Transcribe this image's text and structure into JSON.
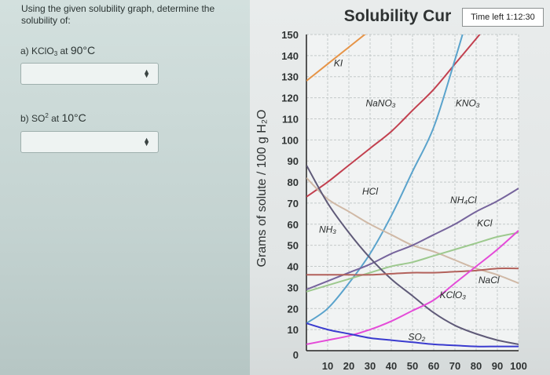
{
  "question": {
    "prompt": "Using the given solubility graph, determine the solubility of:",
    "a": {
      "prefix": "a) KClO",
      "sub": "3",
      "middle": " at ",
      "value": "90°C"
    },
    "b": {
      "prefix": "b) SO",
      "sup": "2",
      "middle": " at ",
      "value": "10°C"
    },
    "selects": [
      {
        "value": ""
      },
      {
        "value": ""
      }
    ]
  },
  "timer": {
    "text": "Time left 1:12:30"
  },
  "chart_data": {
    "type": "line",
    "title": "Solubility Cur",
    "ylabel": "Grams of solute / 100 g H₂O",
    "xlabel": "",
    "xlim": [
      0,
      100
    ],
    "ylim": [
      0,
      150
    ],
    "grid": true,
    "x_ticks": [
      "10",
      "20",
      "30",
      "40",
      "50",
      "60",
      "70",
      "80",
      "90",
      "100"
    ],
    "y_ticks": [
      "0",
      "10",
      "20",
      "30",
      "40",
      "50",
      "60",
      "70",
      "80",
      "90",
      "100",
      "110",
      "120",
      "130",
      "140",
      "150"
    ],
    "series": [
      {
        "name": "KI",
        "color": "#e69447",
        "points": [
          [
            0,
            128
          ],
          [
            20,
            144
          ],
          [
            30,
            152
          ]
        ]
      },
      {
        "name": "NaNO₃",
        "color": "#c2404f",
        "points": [
          [
            0,
            73
          ],
          [
            10,
            80
          ],
          [
            20,
            88
          ],
          [
            30,
            96
          ],
          [
            40,
            104
          ],
          [
            50,
            114
          ],
          [
            60,
            124
          ],
          [
            70,
            136
          ],
          [
            80,
            148
          ],
          [
            84,
            153
          ]
        ]
      },
      {
        "name": "KNO₃",
        "color": "#5aa3cc",
        "points": [
          [
            0,
            13
          ],
          [
            10,
            20
          ],
          [
            20,
            32
          ],
          [
            30,
            46
          ],
          [
            40,
            64
          ],
          [
            50,
            85
          ],
          [
            60,
            106
          ],
          [
            70,
            138
          ],
          [
            75,
            155
          ]
        ]
      },
      {
        "name": "HCl",
        "color": "#d0b9a6",
        "points": [
          [
            0,
            82
          ],
          [
            10,
            72
          ],
          [
            20,
            66
          ],
          [
            30,
            60
          ],
          [
            40,
            55
          ],
          [
            50,
            50
          ],
          [
            60,
            47
          ],
          [
            70,
            43
          ],
          [
            80,
            39
          ],
          [
            90,
            36
          ],
          [
            100,
            32
          ]
        ]
      },
      {
        "name": "NH₄Cl",
        "color": "#76649c",
        "points": [
          [
            0,
            29
          ],
          [
            10,
            33
          ],
          [
            20,
            37
          ],
          [
            30,
            41
          ],
          [
            40,
            46
          ],
          [
            50,
            50
          ],
          [
            60,
            55
          ],
          [
            70,
            60
          ],
          [
            80,
            66
          ],
          [
            90,
            71
          ],
          [
            100,
            77
          ]
        ]
      },
      {
        "name": "KCl",
        "color": "#9dc98e",
        "points": [
          [
            0,
            28
          ],
          [
            10,
            31
          ],
          [
            20,
            34
          ],
          [
            30,
            37
          ],
          [
            40,
            40
          ],
          [
            50,
            42
          ],
          [
            60,
            45
          ],
          [
            70,
            48
          ],
          [
            80,
            51
          ],
          [
            90,
            54
          ],
          [
            100,
            56
          ]
        ]
      },
      {
        "name": "NH₃",
        "color": "#5f5a78",
        "points": [
          [
            0,
            88
          ],
          [
            10,
            70
          ],
          [
            20,
            56
          ],
          [
            30,
            44
          ],
          [
            40,
            34
          ],
          [
            50,
            26
          ],
          [
            60,
            18
          ],
          [
            70,
            12
          ],
          [
            80,
            8
          ],
          [
            90,
            5
          ],
          [
            100,
            3
          ]
        ]
      },
      {
        "name": "NaCl",
        "color": "#b2615b",
        "points": [
          [
            0,
            36
          ],
          [
            10,
            36
          ],
          [
            20,
            36
          ],
          [
            30,
            36
          ],
          [
            40,
            36.5
          ],
          [
            50,
            37
          ],
          [
            60,
            37
          ],
          [
            70,
            37.5
          ],
          [
            80,
            38
          ],
          [
            90,
            39
          ],
          [
            100,
            39
          ]
        ]
      },
      {
        "name": "KClO₃",
        "color": "#e44bd8",
        "points": [
          [
            0,
            3
          ],
          [
            10,
            5
          ],
          [
            20,
            7
          ],
          [
            30,
            10
          ],
          [
            40,
            14
          ],
          [
            50,
            19
          ],
          [
            60,
            24
          ],
          [
            70,
            32
          ],
          [
            80,
            40
          ],
          [
            90,
            48
          ],
          [
            100,
            57
          ]
        ]
      },
      {
        "name": "SO₂",
        "color": "#3a3bcf",
        "points": [
          [
            0,
            13
          ],
          [
            10,
            10
          ],
          [
            20,
            8
          ],
          [
            30,
            6
          ],
          [
            40,
            5
          ],
          [
            50,
            4
          ],
          [
            60,
            3
          ],
          [
            70,
            2.5
          ],
          [
            80,
            2
          ],
          [
            90,
            2
          ],
          [
            100,
            2
          ]
        ]
      }
    ],
    "labels": [
      {
        "series": "KI",
        "text": "KI",
        "x": 15,
        "y": 135
      },
      {
        "series": "NaNO₃",
        "text": "NaNO₃",
        "x": 35,
        "y": 116
      },
      {
        "series": "KNO₃",
        "text": "KNO₃",
        "x": 76,
        "y": 116
      },
      {
        "series": "HCl",
        "text": "HCl",
        "x": 30,
        "y": 74
      },
      {
        "series": "NH₄Cl",
        "text": "NH₄Cl",
        "x": 74,
        "y": 70
      },
      {
        "series": "KCl",
        "text": "KCl",
        "x": 84,
        "y": 59
      },
      {
        "series": "NH₃",
        "text": "NH₃",
        "x": 10,
        "y": 56
      },
      {
        "series": "NaCl",
        "text": "NaCl",
        "x": 86,
        "y": 32
      },
      {
        "series": "KClO₃",
        "text": "KClO₃",
        "x": 69,
        "y": 25
      },
      {
        "series": "SO₂",
        "text": "SO₂",
        "x": 52,
        "y": 5
      }
    ]
  }
}
